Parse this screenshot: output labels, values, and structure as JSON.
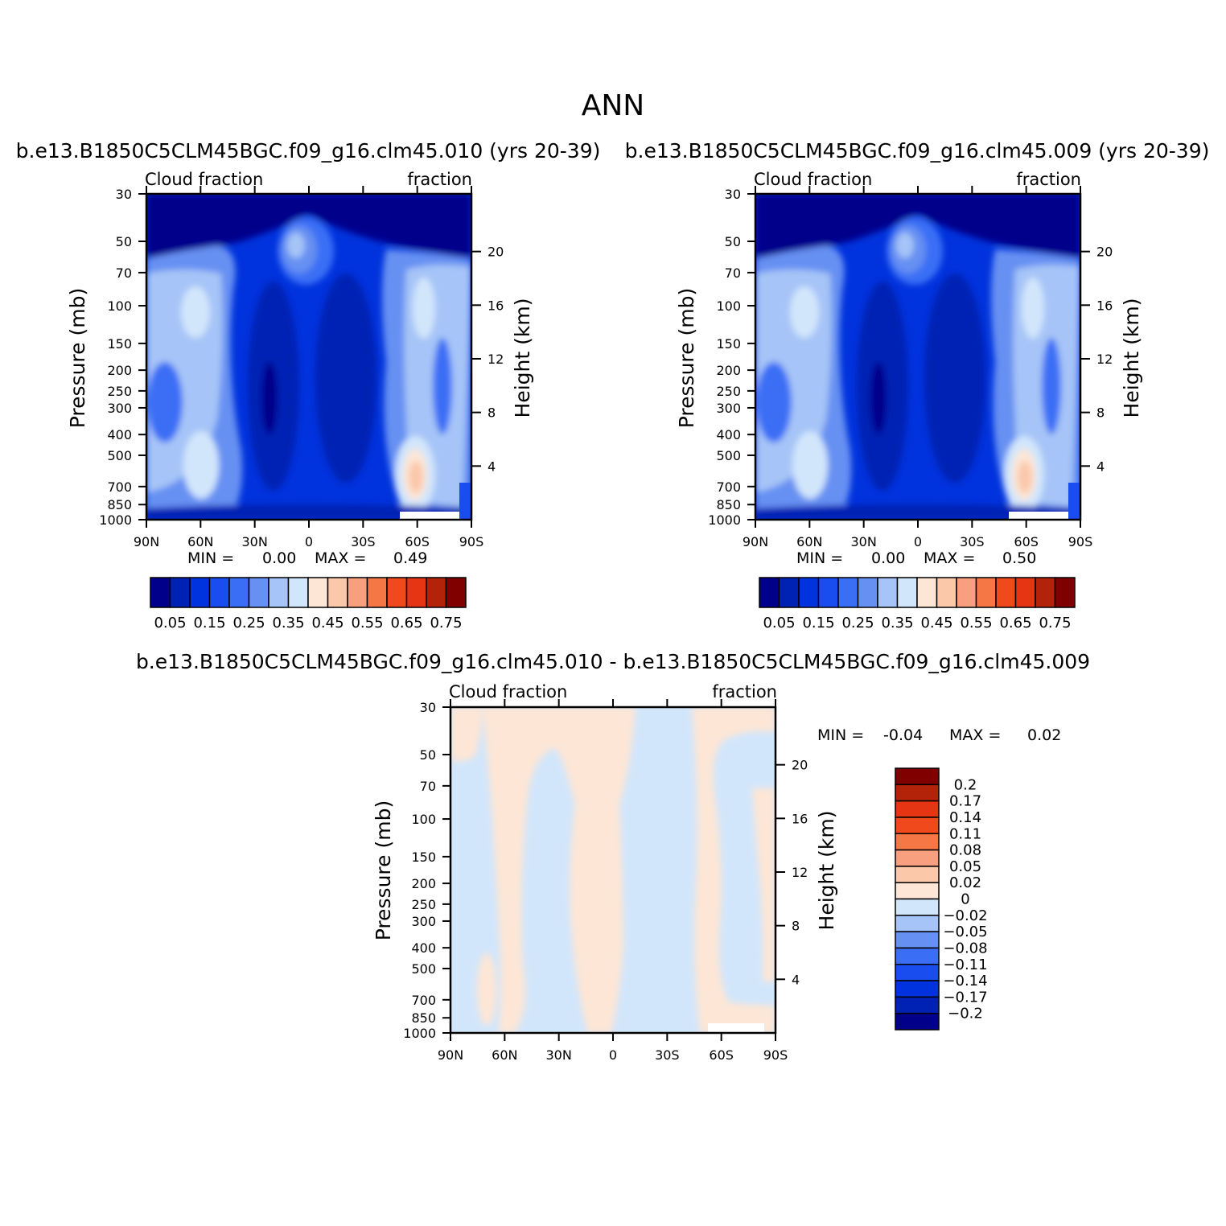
{
  "figure": {
    "main_title": "ANN",
    "diff_title": "b.e13.B1850C5CLM45BGC.f09_g16.clm45.010 - b.e13.B1850C5CLM45BGC.f09_g16.clm45.009"
  },
  "chart_data": [
    {
      "type": "heatmap",
      "title": "b.e13.B1850C5CLM45BGC.f09_g16.clm45.010 (yrs 20-39)",
      "left_subtitle": "Cloud fraction",
      "right_subtitle": "fraction",
      "xlabel": "",
      "ylabel": "Pressure (mb)",
      "ylabel_right": "Height (km)",
      "x_ticks": [
        "90N",
        "60N",
        "30N",
        "0",
        "30S",
        "60S",
        "90S"
      ],
      "y_ticks": [
        30,
        50,
        70,
        100,
        150,
        200,
        250,
        300,
        400,
        500,
        700,
        850,
        1000
      ],
      "y_right_ticks": [
        20,
        16,
        12,
        8,
        4
      ],
      "y_scale": "log",
      "ylim": [
        1000,
        30
      ],
      "min_label": "MIN =",
      "min_value": "0.00",
      "max_label": "MAX =",
      "max_value": "0.49",
      "colorbar_orientation": "horizontal",
      "colorbar_labels": [
        "0.05",
        "0.15",
        "0.25",
        "0.35",
        "0.45",
        "0.55",
        "0.65",
        "0.75"
      ],
      "colors": [
        "#00008b",
        "#0022b4",
        "#0033dd",
        "#1a4df0",
        "#3a6ef5",
        "#6690f2",
        "#a6c4f7",
        "#d2e6fb",
        "#fde6d6",
        "#fbc8aa",
        "#f79f7e",
        "#f57746",
        "#f04a1c",
        "#e53512",
        "#b3230a",
        "#800000"
      ]
    },
    {
      "type": "heatmap",
      "title": "b.e13.B1850C5CLM45BGC.f09_g16.clm45.009 (yrs 20-39)",
      "left_subtitle": "Cloud fraction",
      "right_subtitle": "fraction",
      "xlabel": "",
      "ylabel": "Pressure (mb)",
      "ylabel_right": "Height (km)",
      "x_ticks": [
        "90N",
        "60N",
        "30N",
        "0",
        "30S",
        "60S",
        "90S"
      ],
      "y_ticks": [
        30,
        50,
        70,
        100,
        150,
        200,
        250,
        300,
        400,
        500,
        700,
        850,
        1000
      ],
      "y_right_ticks": [
        20,
        16,
        12,
        8,
        4
      ],
      "y_scale": "log",
      "ylim": [
        1000,
        30
      ],
      "min_label": "MIN =",
      "min_value": "0.00",
      "max_label": "MAX =",
      "max_value": "0.50",
      "colorbar_orientation": "horizontal",
      "colorbar_labels": [
        "0.05",
        "0.15",
        "0.25",
        "0.35",
        "0.45",
        "0.55",
        "0.65",
        "0.75"
      ],
      "colors": [
        "#00008b",
        "#0022b4",
        "#0033dd",
        "#1a4df0",
        "#3a6ef5",
        "#6690f2",
        "#a6c4f7",
        "#d2e6fb",
        "#fde6d6",
        "#fbc8aa",
        "#f79f7e",
        "#f57746",
        "#f04a1c",
        "#e53512",
        "#b3230a",
        "#800000"
      ]
    },
    {
      "type": "heatmap",
      "title": "",
      "left_subtitle": "Cloud fraction",
      "right_subtitle": "fraction",
      "xlabel": "",
      "ylabel": "Pressure (mb)",
      "ylabel_right": "Height (km)",
      "x_ticks": [
        "90N",
        "60N",
        "30N",
        "0",
        "30S",
        "60S",
        "90S"
      ],
      "y_ticks": [
        30,
        50,
        70,
        100,
        150,
        200,
        250,
        300,
        400,
        500,
        700,
        850,
        1000
      ],
      "y_right_ticks": [
        20,
        16,
        12,
        8,
        4
      ],
      "y_scale": "log",
      "ylim": [
        1000,
        30
      ],
      "min_label": "MIN =",
      "min_value": "-0.04",
      "max_label": "MAX =",
      "max_value": "0.02",
      "colorbar_orientation": "vertical",
      "colorbar_labels": [
        "0.2",
        "0.17",
        "0.14",
        "0.11",
        "0.08",
        "0.05",
        "0.02",
        "0",
        "-0.02",
        "-0.05",
        "-0.08",
        "-0.11",
        "-0.14",
        "-0.17",
        "-0.2"
      ],
      "colors": [
        "#800000",
        "#b3230a",
        "#e53512",
        "#f04a1c",
        "#f57746",
        "#f79f7e",
        "#fbc8aa",
        "#fde6d6",
        "#d2e6fb",
        "#a6c4f7",
        "#6690f2",
        "#3a6ef5",
        "#1a4df0",
        "#0033dd",
        "#0022b4",
        "#00008b"
      ]
    }
  ]
}
